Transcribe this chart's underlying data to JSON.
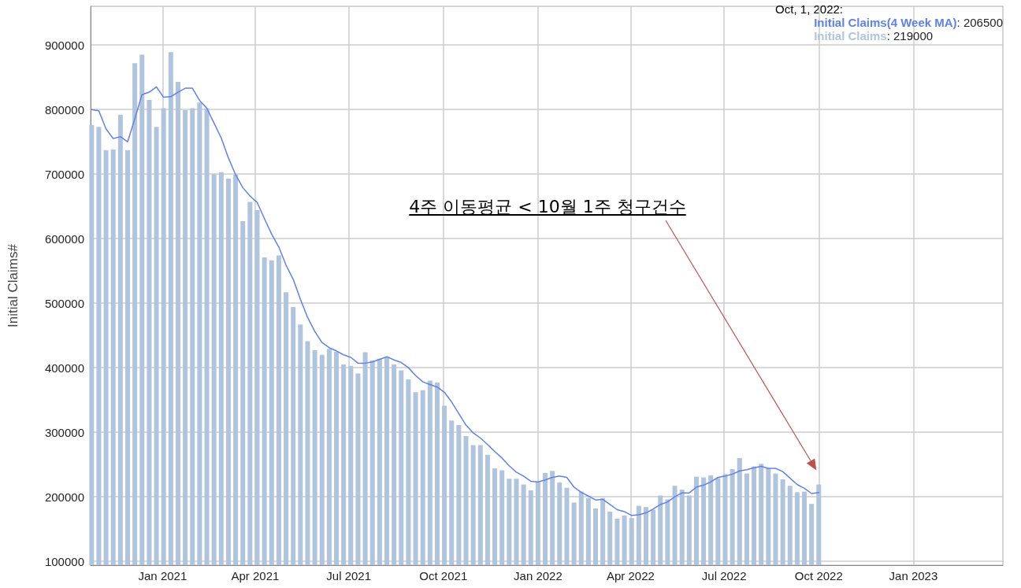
{
  "chart_data": {
    "type": "bar",
    "ylabel": "Initial Claims#",
    "x": [
      "2020-10-24",
      "2020-10-31",
      "2020-11-07",
      "2020-11-14",
      "2020-11-21",
      "2020-11-28",
      "2020-12-05",
      "2020-12-12",
      "2020-12-19",
      "2020-12-26",
      "2021-01-02",
      "2021-01-09",
      "2021-01-16",
      "2021-01-23",
      "2021-01-30",
      "2021-02-06",
      "2021-02-13",
      "2021-02-20",
      "2021-02-27",
      "2021-03-06",
      "2021-03-13",
      "2021-03-20",
      "2021-03-27",
      "2021-04-03",
      "2021-04-10",
      "2021-04-17",
      "2021-04-24",
      "2021-05-01",
      "2021-05-08",
      "2021-05-15",
      "2021-05-22",
      "2021-05-29",
      "2021-06-05",
      "2021-06-12",
      "2021-06-19",
      "2021-06-26",
      "2021-07-03",
      "2021-07-10",
      "2021-07-17",
      "2021-07-24",
      "2021-07-31",
      "2021-08-07",
      "2021-08-14",
      "2021-08-21",
      "2021-08-28",
      "2021-09-04",
      "2021-09-11",
      "2021-09-18",
      "2021-09-25",
      "2021-10-02",
      "2021-10-09",
      "2021-10-16",
      "2021-10-23",
      "2021-10-30",
      "2021-11-06",
      "2021-11-13",
      "2021-11-20",
      "2021-11-27",
      "2021-12-04",
      "2021-12-11",
      "2021-12-18",
      "2021-12-25",
      "2022-01-01",
      "2022-01-08",
      "2022-01-15",
      "2022-01-22",
      "2022-01-29",
      "2022-02-05",
      "2022-02-12",
      "2022-02-19",
      "2022-02-26",
      "2022-03-05",
      "2022-03-12",
      "2022-03-19",
      "2022-03-26",
      "2022-04-02",
      "2022-04-09",
      "2022-04-16",
      "2022-04-23",
      "2022-04-30",
      "2022-05-07",
      "2022-05-14",
      "2022-05-21",
      "2022-05-28",
      "2022-06-04",
      "2022-06-11",
      "2022-06-18",
      "2022-06-25",
      "2022-07-02",
      "2022-07-09",
      "2022-07-16",
      "2022-07-23",
      "2022-07-30",
      "2022-08-06",
      "2022-08-13",
      "2022-08-20",
      "2022-08-27",
      "2022-09-03",
      "2022-09-10",
      "2022-09-17",
      "2022-09-24",
      "2022-10-01"
    ],
    "series": [
      {
        "name": "Initial Claims(4 Week MA)",
        "type": "line",
        "color": "#5f82ea",
        "values": [
          800000,
          798000,
          770000,
          755000,
          758000,
          750000,
          786000,
          823000,
          827000,
          835000,
          819000,
          820000,
          827000,
          833000,
          833000,
          814000,
          802000,
          779000,
          756000,
          725000,
          699000,
          679000,
          666000,
          656000,
          631000,
          607000,
          587000,
          559000,
          537000,
          506000,
          478000,
          456000,
          439000,
          431000,
          426000,
          420000,
          416000,
          407000,
          407000,
          409000,
          413000,
          417000,
          412000,
          408000,
          400000,
          388000,
          378000,
          374000,
          370000,
          362000,
          347000,
          329000,
          311000,
          299000,
          291000,
          281000,
          270000,
          260000,
          248000,
          238000,
          232000,
          224000,
          223000,
          226000,
          230000,
          232000,
          230000,
          215000,
          207000,
          201000,
          195000,
          196000,
          188000,
          180000,
          177000,
          171000,
          172000,
          175000,
          181000,
          188000,
          192000,
          200000,
          206000,
          206000,
          215000,
          218000,
          223000,
          230000,
          232000,
          235000,
          240000,
          242000,
          245000,
          247000,
          244000,
          244000,
          239000,
          229000,
          219000,
          213000,
          205000,
          206500
        ],
        "value_labels": [
          null,
          null,
          null,
          null,
          null,
          null,
          null,
          null,
          null,
          null,
          null,
          null,
          null,
          null,
          null,
          null,
          null,
          null,
          null,
          null,
          null,
          null,
          null,
          null,
          null,
          null,
          null,
          null,
          null,
          null,
          null,
          null,
          null,
          null,
          null,
          null,
          null,
          null,
          null,
          null,
          null,
          null,
          null,
          null,
          null,
          null,
          null,
          null,
          null,
          null,
          null,
          null,
          null,
          null,
          null,
          null,
          null,
          null,
          null,
          null,
          null,
          null,
          null,
          null,
          null,
          null,
          null,
          null,
          null,
          null,
          null,
          null,
          null,
          null,
          null,
          null,
          null,
          null,
          null,
          null,
          null,
          null,
          null,
          null,
          null,
          null,
          null,
          null,
          null,
          null,
          null,
          null,
          null,
          null,
          null,
          null,
          null,
          null,
          null,
          null,
          null,
          null
        ]
      },
      {
        "name": "Initial Claims",
        "color": "#b0c4de",
        "values": [
          776000,
          773000,
          737000,
          738000,
          792000,
          737000,
          872000,
          885000,
          815000,
          773000,
          802000,
          889000,
          843000,
          799000,
          802000,
          811000,
          802000,
          700000,
          703000,
          693000,
          699000,
          627000,
          657000,
          644000,
          571000,
          566000,
          574000,
          517000,
          494000,
          467000,
          441000,
          427000,
          420000,
          429000,
          425000,
          405000,
          403000,
          391000,
          424000,
          411000,
          414000,
          416000,
          405000,
          396000,
          382000,
          362000,
          365000,
          380000,
          377000,
          341000,
          318000,
          311000,
          294000,
          280000,
          280000,
          265000,
          244000,
          241000,
          228000,
          228000,
          219000,
          210000,
          223000,
          237000,
          240000,
          222000,
          214000,
          191000,
          208000,
          198000,
          182000,
          198000,
          177000,
          166000,
          171000,
          167000,
          186000,
          184000,
          180000,
          202000,
          196000,
          217000,
          211000,
          202000,
          231000,
          230000,
          233000,
          229000,
          235000,
          243000,
          260000,
          236000,
          247000,
          251000,
          244000,
          236000,
          227000,
          217000,
          207000,
          208000,
          189000,
          219000
        ],
        "value_labels": [
          null,
          null,
          null,
          null,
          null,
          null,
          null,
          null,
          null,
          null,
          null,
          null,
          null,
          null,
          null,
          null,
          null,
          null,
          null,
          null,
          null,
          null,
          null,
          null,
          null,
          null,
          null,
          null,
          null,
          null,
          null,
          null,
          null,
          null,
          null,
          null,
          null,
          null,
          null,
          null,
          null,
          null,
          null,
          null,
          null,
          null,
          null,
          null,
          null,
          null,
          null,
          null,
          null,
          null,
          null,
          null,
          null,
          null,
          null,
          null,
          null,
          null,
          null,
          null,
          null,
          null,
          null,
          null,
          null,
          null,
          null,
          null,
          null,
          null,
          null,
          null,
          null,
          null,
          null,
          null,
          null,
          null,
          null,
          null,
          null,
          null,
          null,
          null,
          null,
          null,
          null,
          null,
          null,
          null,
          null,
          null,
          null,
          null,
          null,
          null,
          null,
          null
        ]
      }
    ],
    "xlim": [
      "2020-10-23",
      "2023-03-29"
    ],
    "xticks": [
      {
        "value": "2021-01-01",
        "label": "Jan 2021"
      },
      {
        "value": "2021-04-01",
        "label": "Apr 2021"
      },
      {
        "value": "2021-07-01",
        "label": "Jul 2021"
      },
      {
        "value": "2021-10-01",
        "label": "Oct 2021"
      },
      {
        "value": "2022-01-01",
        "label": "Jan 2022"
      },
      {
        "value": "2022-04-01",
        "label": "Apr 2022"
      },
      {
        "value": "2022-07-01",
        "label": "Jul 2022"
      },
      {
        "value": "2022-10-01",
        "label": "Oct 2022"
      },
      {
        "value": "2023-01-01",
        "label": "Jan 2023"
      }
    ],
    "ylim": [
      94000,
      960000
    ],
    "yticks": [
      100000,
      200000,
      300000,
      400000,
      500000,
      600000,
      700000,
      800000,
      900000
    ],
    "grid": true,
    "legend": "top right",
    "marker": "none",
    "line_style": "solid",
    "annotations": [
      "Oct, 1, 2022:",
      "4주 이동평균 < 10월 1주 청구건수",
      ": 206500",
      ": 219000"
    ]
  }
}
